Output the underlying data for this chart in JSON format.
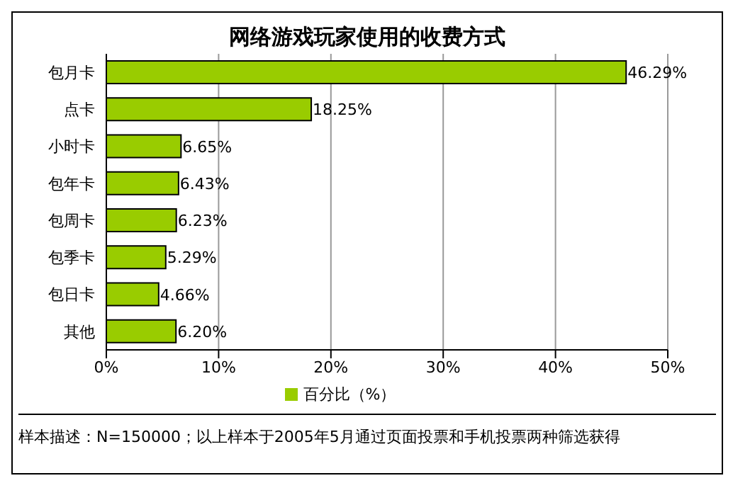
{
  "chart_data": {
    "type": "bar",
    "orientation": "horizontal",
    "title": "网络游戏玩家使用的收费方式",
    "categories": [
      "包月卡",
      "点卡",
      "小时卡",
      "包年卡",
      "包周卡",
      "包季卡",
      "包日卡",
      "其他"
    ],
    "series": [
      {
        "name": "百分比（%）",
        "color": "#99cc00",
        "values": [
          46.29,
          18.25,
          6.65,
          6.43,
          6.23,
          5.29,
          4.66,
          6.2
        ],
        "value_labels": [
          "46.29%",
          "18.25%",
          "6.65%",
          "6.43%",
          "6.23%",
          "5.29%",
          "4.66%",
          "6.20%"
        ]
      }
    ],
    "xlim": [
      0,
      50
    ],
    "xticks": [
      {
        "value": 0,
        "label": "0%"
      },
      {
        "value": 10,
        "label": "10%"
      },
      {
        "value": 20,
        "label": "20%"
      },
      {
        "value": 30,
        "label": "30%"
      },
      {
        "value": 40,
        "label": "40%"
      },
      {
        "value": 50,
        "label": "50%"
      }
    ],
    "grid": "x",
    "legend": "bottom",
    "annotations": [
      "样本描述：N=150000；以上样本于2005年5月通过页面投票和手机投票两种筛选获得"
    ]
  }
}
